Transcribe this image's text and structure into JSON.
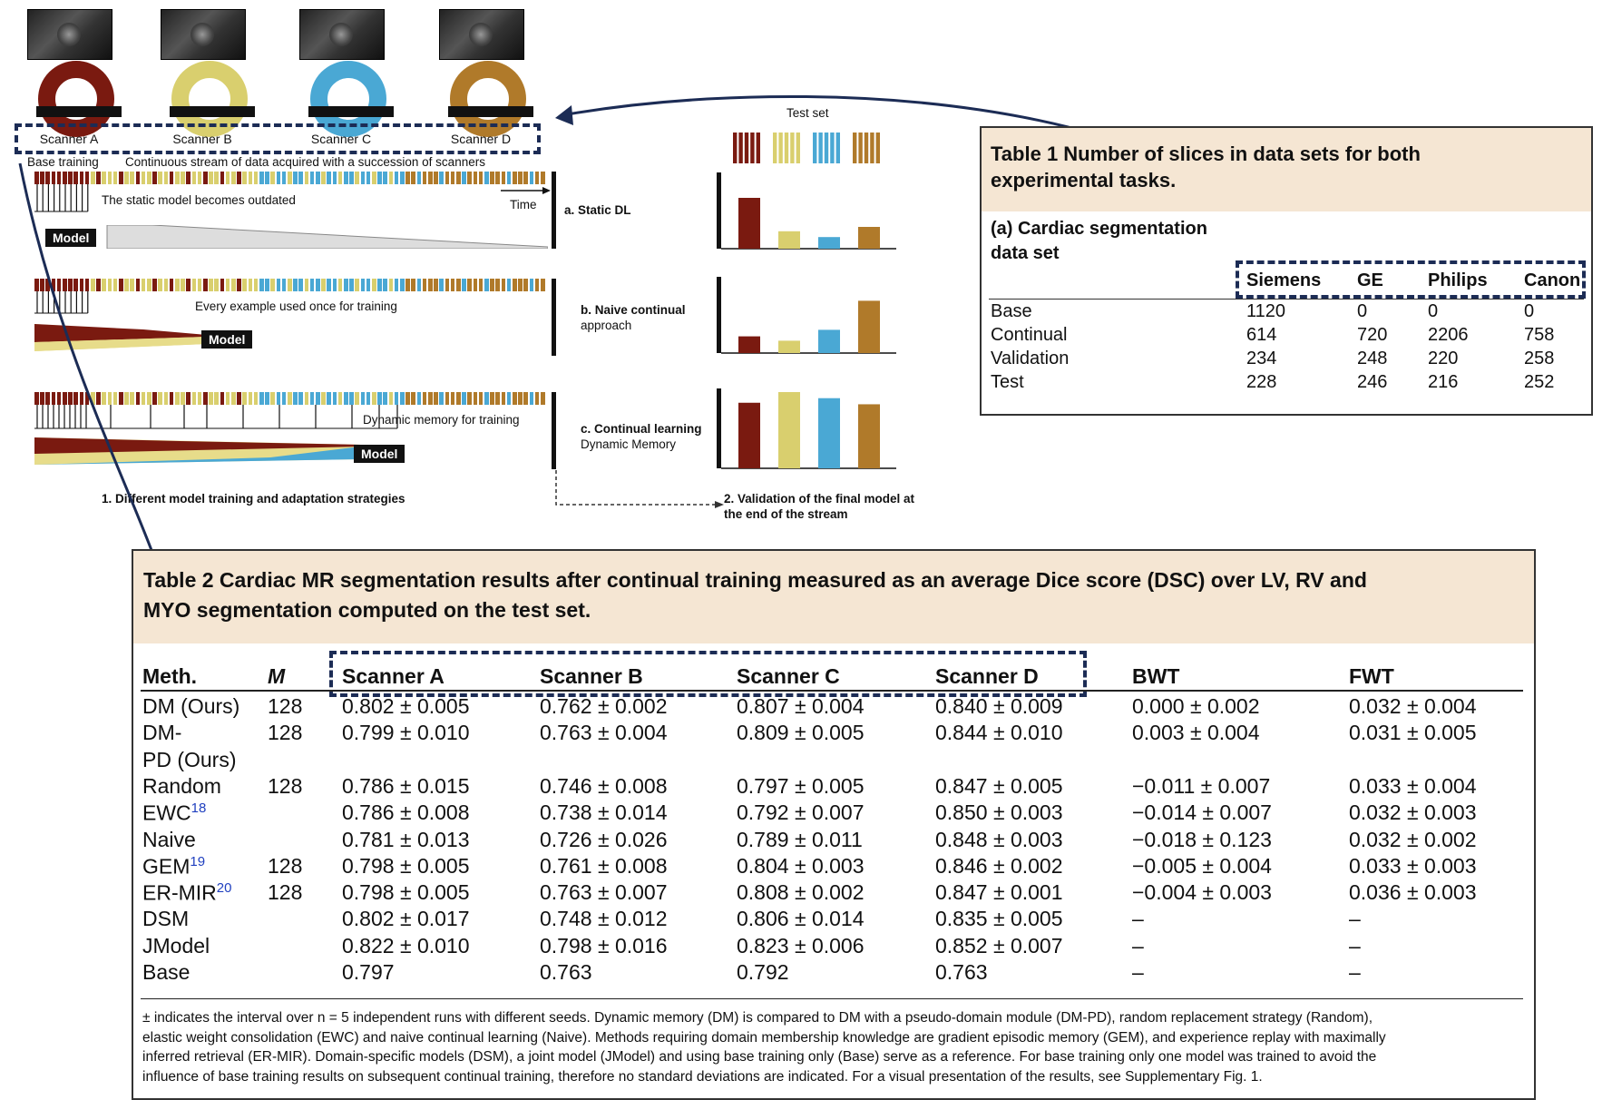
{
  "figure": {
    "scanners": [
      "Scanner A",
      "Scanner B",
      "Scanner C",
      "Scanner D"
    ],
    "scanner_colors": [
      "#7a1a10",
      "#d9cf6e",
      "#4aa8d4",
      "#b07a2a"
    ],
    "base_training_label": "Base training",
    "stream_label": "Continuous stream of data acquired with a succession of scanners",
    "time_label": "Time",
    "static_outdated_label": "The static model becomes outdated",
    "every_example_label": "Every example used once for training",
    "dynamic_memory_label": "Dynamic memory for training",
    "model_label": "Model",
    "strategy_a": "a. Static DL",
    "strategy_b_line1": "b. Naive continual",
    "strategy_b_line2": "approach",
    "strategy_c_line1": "c. Continual learning",
    "strategy_c_line2": "Dynamic Memory",
    "caption_1": "1. Different model training and adaptation strategies",
    "test_set_label": "Test set",
    "caption_2_line1": "2. Validation of the final model at",
    "caption_2_line2": "the end of the stream",
    "validation_bars": {
      "static": [
        0.7,
        0.24,
        0.16,
        0.3
      ],
      "naive": [
        0.23,
        0.17,
        0.32,
        0.72
      ],
      "dynamic": [
        0.86,
        1.0,
        0.92,
        0.84
      ]
    }
  },
  "table1": {
    "title_line1": "Table 1 Number of slices in data sets for both",
    "title_line2": "experimental tasks.",
    "subtitle_line1": "(a) Cardiac segmentation",
    "subtitle_line2": "data set",
    "columns": [
      "Siemens",
      "GE",
      "Philips",
      "Canon"
    ],
    "rows": [
      {
        "label": "Base",
        "values": [
          "1120",
          "0",
          "0",
          "0"
        ]
      },
      {
        "label": "Continual",
        "values": [
          "614",
          "720",
          "2206",
          "758"
        ]
      },
      {
        "label": "Validation",
        "values": [
          "234",
          "248",
          "220",
          "258"
        ]
      },
      {
        "label": "Test",
        "values": [
          "228",
          "246",
          "216",
          "252"
        ]
      }
    ]
  },
  "table2": {
    "title_line1": "Table 2 Cardiac MR segmentation results after continual training measured as an average Dice score (DSC) over LV, RV and",
    "title_line2": "MYO segmentation computed on the test set.",
    "columns": [
      "Meth.",
      "M",
      "Scanner A",
      "Scanner B",
      "Scanner C",
      "Scanner D",
      "BWT",
      "FWT"
    ],
    "rows": [
      {
        "method": "DM (Ours)",
        "ref": "",
        "m": "128",
        "a": "0.802 ± 0.005",
        "b": "0.762 ± 0.002",
        "c": "0.807 ± 0.004",
        "d": "0.840 ± 0.009",
        "bwt": "0.000 ± 0.002",
        "fwt": "0.032 ± 0.004"
      },
      {
        "method": "DM-",
        "ref": "",
        "m": "128",
        "a": "0.799 ± 0.010",
        "b": "0.763 ± 0.004",
        "c": "0.809 ± 0.005",
        "d": "0.844 ± 0.010",
        "bwt": "0.003 ± 0.004",
        "fwt": "0.031 ± 0.005"
      },
      {
        "method": "PD (Ours)",
        "ref": "",
        "m": "",
        "a": "",
        "b": "",
        "c": "",
        "d": "",
        "bwt": "",
        "fwt": ""
      },
      {
        "method": "Random",
        "ref": "",
        "m": "128",
        "a": "0.786 ± 0.015",
        "b": "0.746 ± 0.008",
        "c": "0.797 ± 0.005",
        "d": "0.847 ± 0.005",
        "bwt": "−0.011 ± 0.007",
        "fwt": "0.033 ± 0.004"
      },
      {
        "method": "EWC",
        "ref": "18",
        "m": "",
        "a": "0.786 ± 0.008",
        "b": "0.738 ± 0.014",
        "c": "0.792 ± 0.007",
        "d": "0.850 ± 0.003",
        "bwt": "−0.014 ± 0.007",
        "fwt": "0.032 ± 0.003"
      },
      {
        "method": "Naive",
        "ref": "",
        "m": "",
        "a": "0.781 ± 0.013",
        "b": "0.726 ± 0.026",
        "c": "0.789 ± 0.011",
        "d": "0.848 ± 0.003",
        "bwt": "−0.018 ± 0.123",
        "fwt": "0.032 ± 0.002"
      },
      {
        "method": "GEM",
        "ref": "19",
        "m": "128",
        "a": "0.798 ± 0.005",
        "b": "0.761 ± 0.008",
        "c": "0.804 ± 0.003",
        "d": "0.846 ± 0.002",
        "bwt": "−0.005 ± 0.004",
        "fwt": "0.033 ± 0.003"
      },
      {
        "method": "ER-MIR",
        "ref": "20",
        "m": "128",
        "a": "0.798 ± 0.005",
        "b": "0.763 ± 0.007",
        "c": "0.808 ± 0.002",
        "d": "0.847 ± 0.001",
        "bwt": "−0.004 ± 0.003",
        "fwt": "0.036 ± 0.003"
      },
      {
        "method": "DSM",
        "ref": "",
        "m": "",
        "a": "0.802 ± 0.017",
        "b": "0.748 ± 0.012",
        "c": "0.806 ± 0.014",
        "d": "0.835 ± 0.005",
        "bwt": "–",
        "fwt": "–"
      },
      {
        "method": "JModel",
        "ref": "",
        "m": "",
        "a": "0.822 ± 0.010",
        "b": "0.798 ± 0.016",
        "c": "0.823 ± 0.006",
        "d": "0.852 ± 0.007",
        "bwt": "–",
        "fwt": "–"
      },
      {
        "method": "Base",
        "ref": "",
        "m": "",
        "a": "0.797",
        "b": "0.763",
        "c": "0.792",
        "d": "0.763",
        "bwt": "–",
        "fwt": "–"
      }
    ],
    "footnote_line1": "± indicates the interval over n = 5 independent runs with different seeds. Dynamic memory (DM) is compared to DM with a pseudo-domain module (DM-PD), random replacement strategy (Random),",
    "footnote_line2": "elastic weight consolidation (EWC) and naive continual learning (Naive). Methods requiring domain membership knowledge are gradient episodic memory (GEM), and experience replay with maximally",
    "footnote_line3": "inferred retrieval (ER-MIR). Domain-specific models (DSM), a joint model (JModel) and using base training only (Base) serve as a reference. For base training only one model was trained to avoid the",
    "footnote_line4": "influence of base training results on subsequent continual training, therefore no standard deviations are indicated. For a visual presentation of the results, see Supplementary Fig. 1."
  }
}
